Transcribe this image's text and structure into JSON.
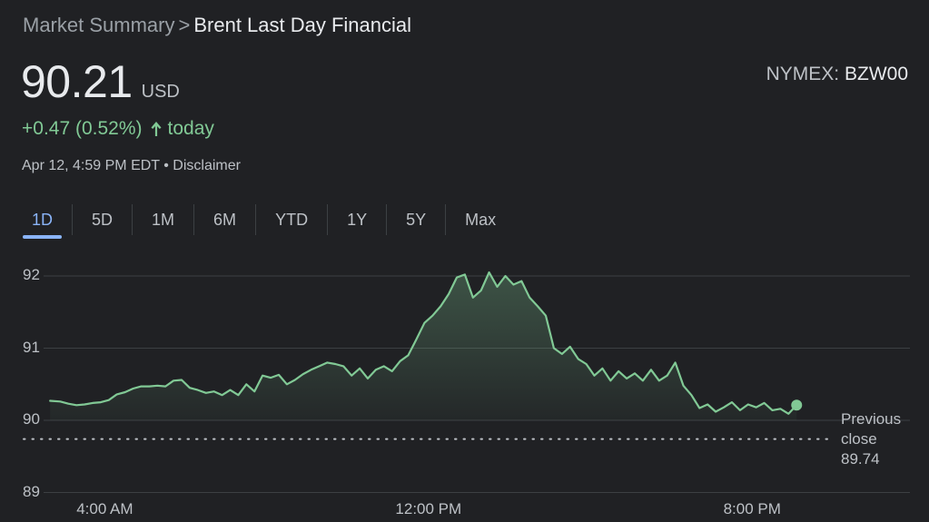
{
  "breadcrumb": {
    "root": "Market Summary",
    "separator": ">",
    "current": "Brent Last Day Financial"
  },
  "quote": {
    "price": "90.21",
    "currency": "USD",
    "exchange": "NYMEX:",
    "ticker": "BZW00",
    "change": "+0.47 (0.52%)",
    "change_direction_icon": "arrow-up-icon",
    "change_suffix": "today",
    "timestamp": "Apr 12, 4:59 PM EDT",
    "bullet": "•",
    "disclaimer": "Disclaimer"
  },
  "ranges": {
    "active": "1D",
    "items": [
      "1D",
      "5D",
      "1M",
      "6M",
      "YTD",
      "1Y",
      "5Y",
      "Max"
    ]
  },
  "colors": {
    "background": "#202124",
    "accent": "#8ab4f8",
    "positive": "#81c995"
  },
  "chart_data": {
    "type": "area",
    "y_ticks": [
      "92",
      "91",
      "90",
      "89"
    ],
    "ylim": [
      89,
      92.2
    ],
    "x_ticks": [
      {
        "label": "4:00 AM",
        "hour": 4
      },
      {
        "label": "12:00 PM",
        "hour": 12
      },
      {
        "label": "8:00 PM",
        "hour": 20
      }
    ],
    "xlim": [
      2.6,
      23.9
    ],
    "grid": true,
    "previous_close": {
      "label_1": "Previous",
      "label_2": "close",
      "value": "89.74",
      "level": 89.74
    },
    "series": [
      {
        "hour_values": [
          [
            2.65,
            90.27
          ],
          [
            2.9,
            90.26
          ],
          [
            3.1,
            90.23
          ],
          [
            3.3,
            90.21
          ],
          [
            3.5,
            90.22
          ],
          [
            3.7,
            90.24
          ],
          [
            3.9,
            90.25
          ],
          [
            4.1,
            90.28
          ],
          [
            4.3,
            90.36
          ],
          [
            4.5,
            90.39
          ],
          [
            4.7,
            90.44
          ],
          [
            4.9,
            90.47
          ],
          [
            5.1,
            90.47
          ],
          [
            5.3,
            90.48
          ],
          [
            5.5,
            90.47
          ],
          [
            5.7,
            90.55
          ],
          [
            5.9,
            90.56
          ],
          [
            6.1,
            90.45
          ],
          [
            6.3,
            90.42
          ],
          [
            6.5,
            90.38
          ],
          [
            6.7,
            90.4
          ],
          [
            6.9,
            90.35
          ],
          [
            7.1,
            90.42
          ],
          [
            7.3,
            90.35
          ],
          [
            7.5,
            90.5
          ],
          [
            7.7,
            90.4
          ],
          [
            7.9,
            90.62
          ],
          [
            8.1,
            90.59
          ],
          [
            8.3,
            90.63
          ],
          [
            8.5,
            90.5
          ],
          [
            8.7,
            90.56
          ],
          [
            8.9,
            90.64
          ],
          [
            9.1,
            90.7
          ],
          [
            9.3,
            90.75
          ],
          [
            9.5,
            90.8
          ],
          [
            9.7,
            90.78
          ],
          [
            9.9,
            90.75
          ],
          [
            10.1,
            90.62
          ],
          [
            10.3,
            90.72
          ],
          [
            10.5,
            90.58
          ],
          [
            10.7,
            90.7
          ],
          [
            10.9,
            90.75
          ],
          [
            11.1,
            90.68
          ],
          [
            11.3,
            90.82
          ],
          [
            11.5,
            90.9
          ],
          [
            11.7,
            91.12
          ],
          [
            11.9,
            91.35
          ],
          [
            12.1,
            91.45
          ],
          [
            12.3,
            91.58
          ],
          [
            12.5,
            91.75
          ],
          [
            12.7,
            91.98
          ],
          [
            12.9,
            92.02
          ],
          [
            13.1,
            91.7
          ],
          [
            13.3,
            91.8
          ],
          [
            13.5,
            92.05
          ],
          [
            13.7,
            91.85
          ],
          [
            13.9,
            92.0
          ],
          [
            14.1,
            91.88
          ],
          [
            14.3,
            91.93
          ],
          [
            14.5,
            91.7
          ],
          [
            14.7,
            91.58
          ],
          [
            14.9,
            91.45
          ],
          [
            15.1,
            91.0
          ],
          [
            15.3,
            90.92
          ],
          [
            15.5,
            91.02
          ],
          [
            15.7,
            90.85
          ],
          [
            15.9,
            90.78
          ],
          [
            16.1,
            90.62
          ],
          [
            16.3,
            90.72
          ],
          [
            16.5,
            90.55
          ],
          [
            16.7,
            90.68
          ],
          [
            16.9,
            90.58
          ],
          [
            17.1,
            90.65
          ],
          [
            17.3,
            90.55
          ],
          [
            17.5,
            90.7
          ],
          [
            17.7,
            90.55
          ],
          [
            17.9,
            90.62
          ],
          [
            18.1,
            90.8
          ],
          [
            18.3,
            90.48
          ],
          [
            18.5,
            90.35
          ],
          [
            18.7,
            90.17
          ],
          [
            18.9,
            90.22
          ],
          [
            19.1,
            90.12
          ],
          [
            19.3,
            90.18
          ],
          [
            19.5,
            90.25
          ],
          [
            19.7,
            90.14
          ],
          [
            19.9,
            90.22
          ],
          [
            20.1,
            90.18
          ],
          [
            20.3,
            90.24
          ],
          [
            20.5,
            90.14
          ],
          [
            20.7,
            90.16
          ],
          [
            20.9,
            90.09
          ],
          [
            21.1,
            90.21
          ]
        ]
      }
    ]
  }
}
